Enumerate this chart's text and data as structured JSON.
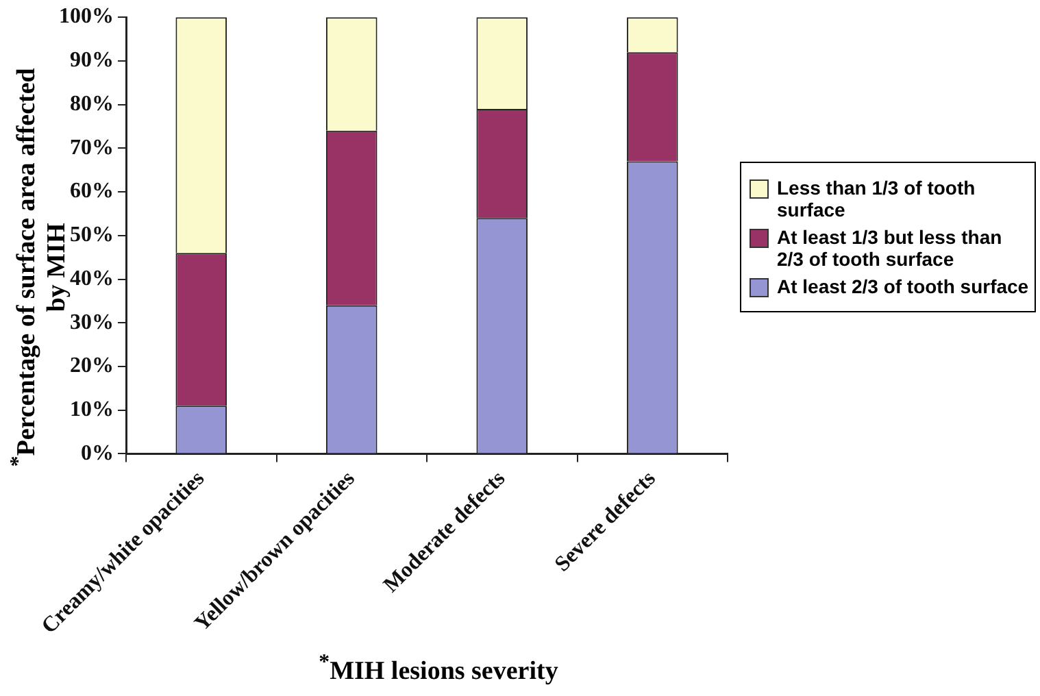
{
  "chart_data": {
    "type": "bar",
    "stacked": true,
    "xlabel": "$^{*}$MIH lesions severity",
    "ylabel": "$^{*}$Percentage of surface area affected by MIH",
    "categories": [
      "Creamy/white opacities",
      "Yellow/brown opacities",
      "Moderate defects",
      "Severe defects"
    ],
    "series": [
      {
        "name": "At least 2/3 of tooth surface",
        "color": "#9595d3",
        "values": [
          11,
          34,
          54,
          67
        ]
      },
      {
        "name": "At least 1/3 but less than 2/3 of tooth surface",
        "color": "#993366",
        "values": [
          35,
          40,
          25,
          25
        ]
      },
      {
        "name": "Less than 1/3 of tooth surface",
        "color": "#fafacc",
        "values": [
          54,
          26,
          21,
          8
        ]
      }
    ],
    "ylim": [
      0,
      100
    ],
    "yticks": [
      {
        "value": 0,
        "label": "0%"
      },
      {
        "value": 10,
        "label": "10%"
      },
      {
        "value": 20,
        "label": "20%"
      },
      {
        "value": 30,
        "label": "30%"
      },
      {
        "value": 40,
        "label": "40%"
      },
      {
        "value": 50,
        "label": "50%"
      },
      {
        "value": 60,
        "label": "60%"
      },
      {
        "value": 70,
        "label": "70%"
      },
      {
        "value": 80,
        "label": "80%"
      },
      {
        "value": 90,
        "label": "90%"
      },
      {
        "value": 100,
        "label": "100%"
      }
    ],
    "grid": false,
    "legend": "right"
  }
}
